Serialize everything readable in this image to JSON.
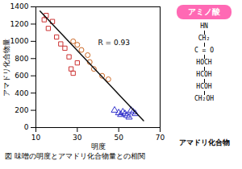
{
  "chart_data": {
    "type": "scatter",
    "xlabel": "明度",
    "ylabel": "アマドリ化合物量",
    "xlim": [
      10,
      70
    ],
    "ylim": [
      0,
      1400
    ],
    "xticks": [
      10,
      30,
      50,
      70
    ],
    "yticks": [
      0,
      200,
      400,
      600,
      800,
      1000,
      1200,
      1400
    ],
    "grid": false,
    "series": [
      {
        "type": "scatter",
        "marker": "square",
        "color": "#cc3333",
        "x": [
          14,
          15,
          16,
          18,
          20,
          22,
          24,
          26,
          27,
          28,
          30
        ],
        "values": [
          1250,
          1300,
          1150,
          1230,
          1050,
          970,
          920,
          820,
          680,
          630,
          750
        ]
      },
      {
        "type": "scatter",
        "marker": "circle",
        "color": "#cc6622",
        "x": [
          28,
          30,
          32,
          35,
          36,
          38,
          42,
          45
        ],
        "values": [
          1000,
          960,
          900,
          840,
          760,
          680,
          600,
          560
        ]
      },
      {
        "type": "scatter",
        "marker": "triangle",
        "color": "#3333cc",
        "x": [
          48,
          50,
          51,
          52,
          53,
          54,
          55,
          56,
          57,
          58
        ],
        "values": [
          200,
          170,
          150,
          180,
          160,
          140,
          120,
          200,
          180,
          160
        ]
      },
      {
        "type": "line",
        "line_style": "solid",
        "color": "#111111",
        "x": [
          12,
          62
        ],
        "values": [
          1350,
          80
        ]
      }
    ],
    "annotations": [
      "R = 0.93"
    ],
    "caption": "図 味噌の明度とアマドリ化合物量との相関",
    "panel_title": "アミノ酸",
    "panel_color": "#ff69b4",
    "panel_lines": [
      "HN",
      "CH₂",
      "C = O",
      "HOCH",
      "HCOH",
      "HCOH",
      "CH₂OH"
    ],
    "panel_footer": "アマドリ化合物"
  }
}
